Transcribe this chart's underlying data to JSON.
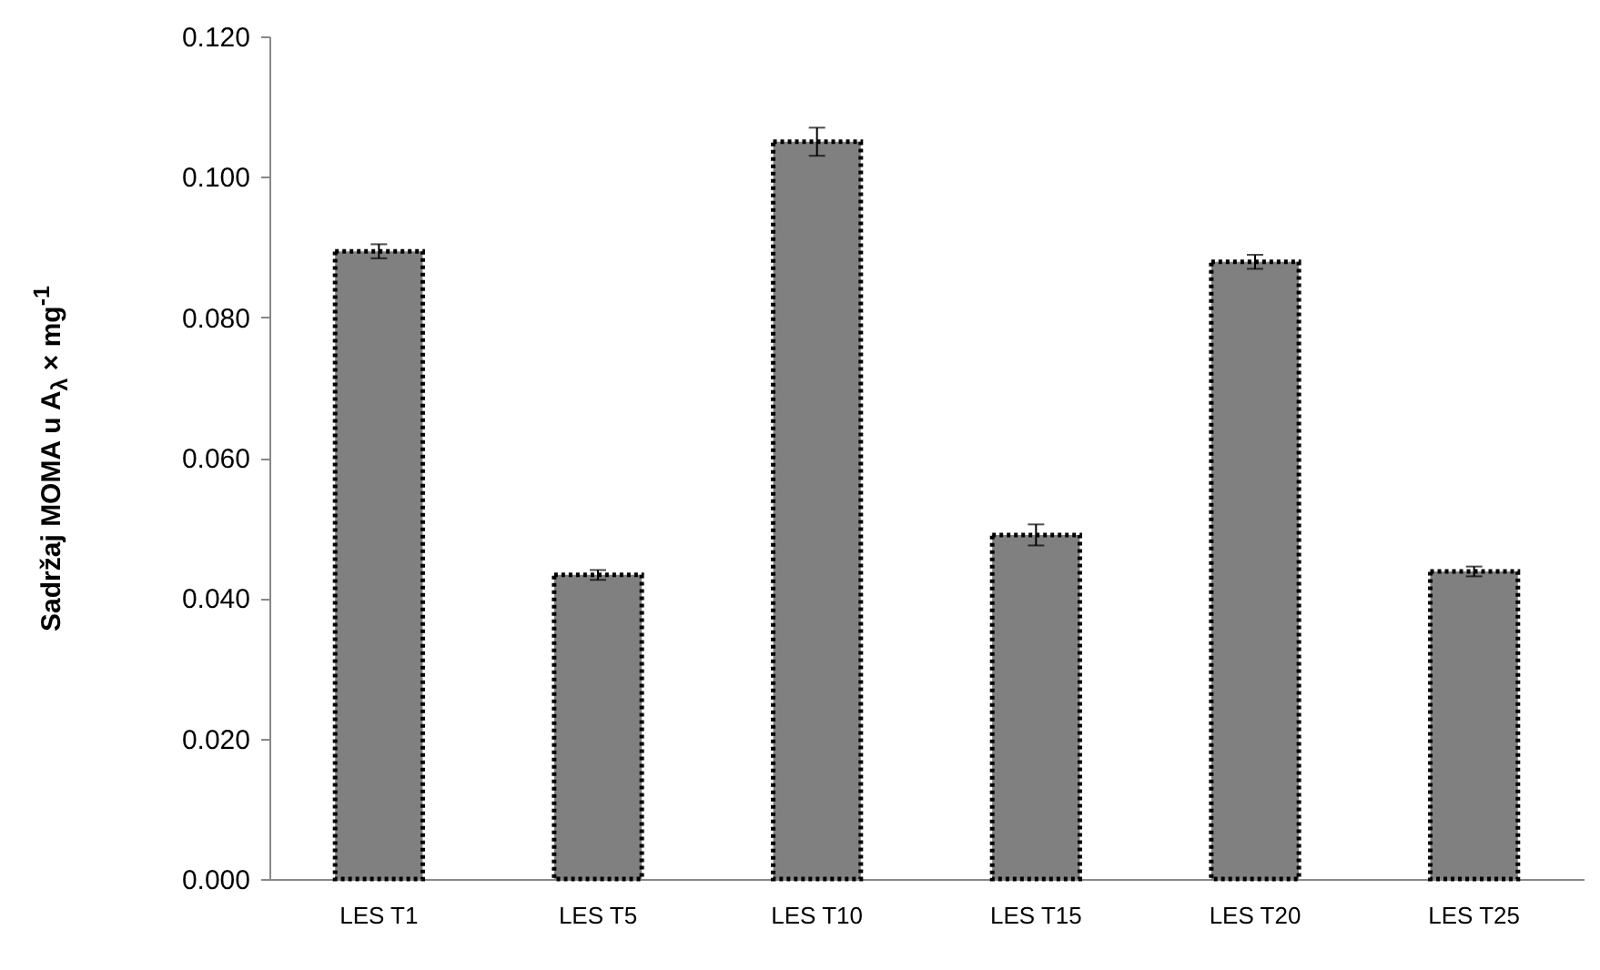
{
  "chart_data": {
    "type": "bar",
    "ylabel": "Sadržaj MOMA u A$_{λ}$ × mg$^{-1}$",
    "categories": [
      "LES T1",
      "LES T5",
      "LES T10",
      "LES T15",
      "LES T20",
      "LES T25"
    ],
    "values": [
      0.0894,
      0.0433,
      0.105,
      0.049,
      0.0879,
      0.0438
    ],
    "errors": [
      0.001,
      0.0007,
      0.002,
      0.0015,
      0.001,
      0.0007
    ],
    "color": "#808080",
    "ylim": [
      0,
      0.12
    ],
    "yticks": [
      {
        "value": 0,
        "label": "0.000"
      },
      {
        "value": 0.02,
        "label": "0.020"
      },
      {
        "value": 0.04,
        "label": "0.040"
      },
      {
        "value": 0.06,
        "label": "0.060"
      },
      {
        "value": 0.08,
        "label": "0.080"
      },
      {
        "value": 0.1,
        "label": "0.100"
      },
      {
        "value": 0.12,
        "label": "0.120"
      }
    ],
    "grid": false
  }
}
